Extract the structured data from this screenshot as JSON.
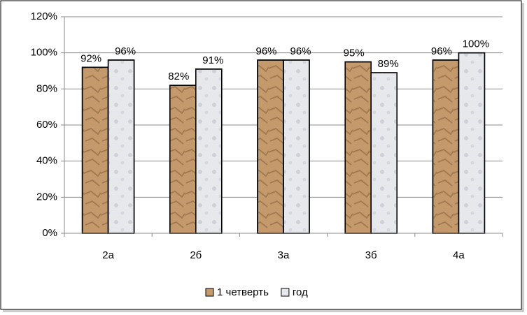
{
  "chart_data": {
    "type": "bar",
    "categories": [
      "2а",
      "2б",
      "3а",
      "3б",
      "4а"
    ],
    "series": [
      {
        "name": "1 четверть",
        "color": "#c49a6c",
        "values": [
          92,
          82,
          96,
          95,
          96
        ],
        "value_labels": [
          "92%",
          "82%",
          "96%",
          "95%",
          "96%"
        ]
      },
      {
        "name": "год",
        "color": "#e6e8ec",
        "values": [
          96,
          91,
          96,
          89,
          100
        ],
        "value_labels": [
          "96%",
          "91%",
          "96%",
          "89%",
          "100%"
        ]
      }
    ],
    "ylim": [
      0,
      120
    ],
    "yticks": [
      {
        "value": 0,
        "label": "0%"
      },
      {
        "value": 20,
        "label": "20%"
      },
      {
        "value": 40,
        "label": "40%"
      },
      {
        "value": 60,
        "label": "60%"
      },
      {
        "value": 80,
        "label": "80%"
      },
      {
        "value": 100,
        "label": "100%"
      },
      {
        "value": 120,
        "label": "120%"
      }
    ],
    "grid": true,
    "legend": "bottom"
  }
}
